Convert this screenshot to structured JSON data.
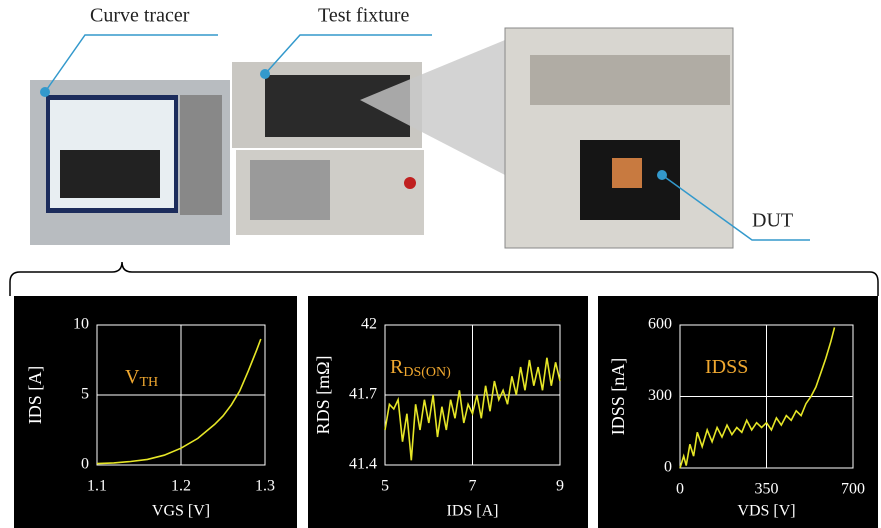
{
  "photo_labels": [
    "Curve tracer",
    "Test fixture",
    "DUT"
  ],
  "chart_data": [
    {
      "type": "line",
      "x_label": "VGS [V]",
      "y_label": "IDS [A]",
      "annotation": {
        "text": "V",
        "subscript": "TH"
      },
      "color": "#e6e627",
      "annotation_color": "#f0a830",
      "grid": true,
      "x": [
        1.1,
        1.12,
        1.14,
        1.16,
        1.18,
        1.2,
        1.22,
        1.24,
        1.25,
        1.26,
        1.27,
        1.28,
        1.29,
        1.295
      ],
      "values": [
        0.1,
        0.15,
        0.25,
        0.4,
        0.7,
        1.2,
        1.9,
        2.9,
        3.5,
        4.3,
        5.3,
        6.7,
        8.2,
        9.0
      ],
      "xlim": [
        1.1,
        1.3
      ],
      "xticks": [
        1.1,
        1.2,
        1.3
      ],
      "ylim": [
        0,
        10
      ],
      "yticks": [
        0,
        5,
        10
      ]
    },
    {
      "type": "line",
      "x_label": "IDS [A]",
      "y_label": "RDS [mΩ]",
      "annotation": {
        "text": "R",
        "subscript": "DS(ON)"
      },
      "color": "#e6e627",
      "annotation_color": "#f0a830",
      "grid": true,
      "x": [
        5.0,
        5.1,
        5.2,
        5.3,
        5.4,
        5.5,
        5.6,
        5.7,
        5.8,
        5.9,
        6.0,
        6.1,
        6.2,
        6.3,
        6.4,
        6.5,
        6.6,
        6.7,
        6.8,
        6.9,
        7.0,
        7.1,
        7.2,
        7.3,
        7.4,
        7.5,
        7.6,
        7.7,
        7.8,
        7.9,
        8.0,
        8.1,
        8.2,
        8.3,
        8.4,
        8.5,
        8.6,
        8.7,
        8.8,
        8.9,
        9.0
      ],
      "values": [
        41.55,
        41.66,
        41.64,
        41.68,
        41.5,
        41.62,
        41.42,
        41.66,
        41.55,
        41.68,
        41.58,
        41.7,
        41.52,
        41.65,
        41.55,
        41.68,
        41.6,
        41.72,
        41.58,
        41.66,
        41.62,
        41.7,
        41.6,
        41.74,
        41.63,
        41.76,
        41.68,
        41.72,
        41.66,
        41.78,
        41.7,
        41.82,
        41.72,
        41.85,
        41.74,
        41.82,
        41.72,
        41.86,
        41.74,
        41.84,
        41.76
      ],
      "xlim": [
        5,
        9
      ],
      "xticks": [
        5,
        7,
        9
      ],
      "ylim": [
        41.4,
        42
      ],
      "yticks": [
        41.4,
        41.7,
        42
      ]
    },
    {
      "type": "line",
      "x_label": "VDS [V]",
      "y_label": "IDSS [nA]",
      "annotation": {
        "text": "IDSS"
      },
      "color": "#e6e627",
      "annotation_color": "#f0a830",
      "grid": true,
      "x": [
        0,
        15,
        25,
        40,
        55,
        70,
        90,
        110,
        130,
        150,
        170,
        190,
        210,
        230,
        250,
        270,
        290,
        310,
        330,
        350,
        370,
        390,
        410,
        430,
        450,
        470,
        490,
        510,
        530,
        550,
        570,
        590,
        610,
        625
      ],
      "values": [
        0,
        50,
        10,
        100,
        50,
        150,
        90,
        160,
        110,
        170,
        130,
        180,
        140,
        170,
        150,
        200,
        160,
        190,
        170,
        190,
        160,
        210,
        180,
        220,
        200,
        240,
        220,
        270,
        300,
        340,
        400,
        460,
        530,
        590
      ],
      "xlim": [
        0,
        700
      ],
      "xticks": [
        0,
        350,
        700
      ],
      "ylim": [
        0,
        600
      ],
      "yticks": [
        0,
        300,
        600
      ]
    }
  ]
}
